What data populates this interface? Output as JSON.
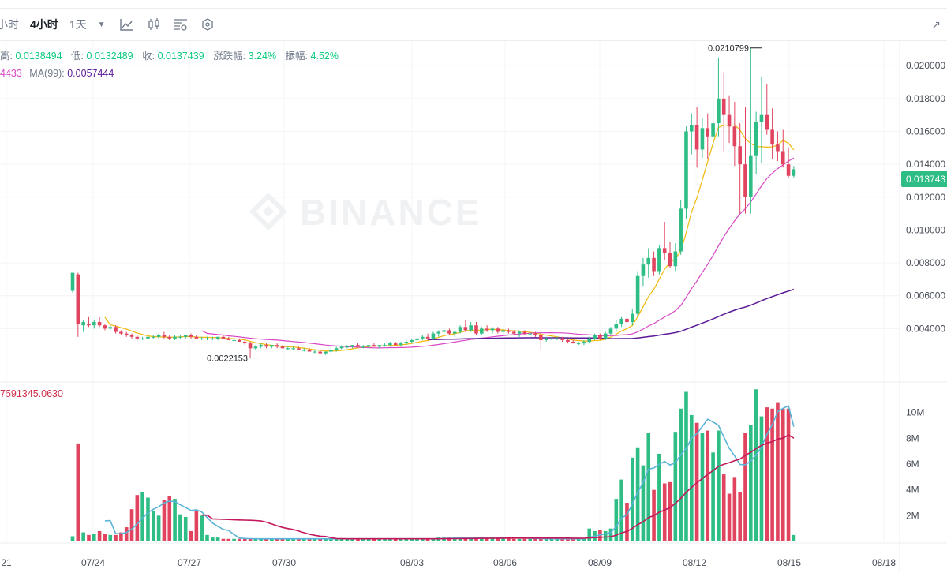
{
  "toolbar": {
    "intervals": [
      {
        "label": "小时",
        "active": false
      },
      {
        "label": "4小时",
        "active": true
      },
      {
        "label": "1天",
        "active": false
      }
    ],
    "icons": [
      "chevron-down-icon",
      "line-chart-icon",
      "candlestick-icon",
      "indicator-settings-icon",
      "hexagon-settings-icon"
    ],
    "expand_icon": "expand-arrow-icon"
  },
  "ohlc": {
    "high_label": "高:",
    "high_value": "0.0138494",
    "low_label": "低:",
    "low_value": "0.0132489",
    "close_label": "收:",
    "close_value": "0.0137439",
    "change_label": "涨跌幅:",
    "change_value": "3.24%",
    "amplitude_label": "振幅:",
    "amplitude_value": "4.52%"
  },
  "ma": {
    "ma25_value": "4433",
    "ma99_label": "MA(99):",
    "ma99_value": "0.0057444"
  },
  "volume": {
    "value": "7591345.0630"
  },
  "watermark": "BINANCE",
  "current_price": "0.013743",
  "colors": {
    "up": "#2ebd85",
    "down": "#e0445f",
    "ma7": "#f0b90b",
    "ma25": "#d946c6",
    "ma99": "#5b1a96",
    "vol_ma_a": "#5ab3d8",
    "vol_ma_b": "#c2185b"
  },
  "chart_data": {
    "type": "candlestick",
    "interval": "4h",
    "price_axis": {
      "ticks": [
        "0.004000",
        "0.006000",
        "0.008000",
        "0.010000",
        "0.012000",
        "0.014000",
        "0.016000",
        "0.018000",
        "0.020000"
      ],
      "range": [
        0.0008,
        0.0215
      ]
    },
    "volume_axis": {
      "ticks": [
        "2M",
        "4M",
        "6M",
        "8M",
        "10M"
      ],
      "range": [
        0,
        12000000
      ]
    },
    "x_axis": {
      "ticks": [
        "21",
        "07/24",
        "07/27",
        "07/30",
        "08/03",
        "08/06",
        "08/09",
        "08/12",
        "08/15",
        "08/18"
      ]
    },
    "annotations": [
      {
        "label": "0.0210799",
        "value": 0.0210799
      },
      {
        "label": "0.0022153",
        "value": 0.0022153
      }
    ],
    "candles": [
      [
        0.0063,
        0.0074,
        0.0062,
        0.0074,
        0.4
      ],
      [
        0.0073,
        0.0074,
        0.0035,
        0.0043,
        7.6
      ],
      [
        0.0042,
        0.0045,
        0.0038,
        0.0044,
        0.7
      ],
      [
        0.0043,
        0.0047,
        0.0041,
        0.0042,
        0.5
      ],
      [
        0.0042,
        0.0045,
        0.004,
        0.0044,
        0.6
      ],
      [
        0.0044,
        0.0047,
        0.0041,
        0.0042,
        0.8
      ],
      [
        0.0042,
        0.0043,
        0.0039,
        0.004,
        0.6
      ],
      [
        0.004,
        0.0042,
        0.0039,
        0.0041,
        0.5
      ],
      [
        0.0041,
        0.0042,
        0.0037,
        0.0038,
        0.5
      ],
      [
        0.0038,
        0.0039,
        0.0036,
        0.0037,
        0.7
      ],
      [
        0.0037,
        0.0038,
        0.0035,
        0.0036,
        1.1
      ],
      [
        0.0036,
        0.0037,
        0.0034,
        0.0035,
        2.5
      ],
      [
        0.0035,
        0.0036,
        0.0033,
        0.0034,
        3.6
      ],
      [
        0.0034,
        0.0035,
        0.0033,
        0.0034,
        3.8
      ],
      [
        0.0034,
        0.0036,
        0.0033,
        0.0035,
        3.4
      ],
      [
        0.0035,
        0.0036,
        0.0034,
        0.0035,
        2.4
      ],
      [
        0.0035,
        0.0037,
        0.0034,
        0.0036,
        2.0
      ],
      [
        0.0036,
        0.0038,
        0.0034,
        0.0035,
        3.2
      ],
      [
        0.0035,
        0.0036,
        0.0033,
        0.0034,
        3.5
      ],
      [
        0.0034,
        0.0036,
        0.0033,
        0.0035,
        3.3
      ],
      [
        0.0035,
        0.0036,
        0.0034,
        0.0035,
        2.1
      ],
      [
        0.0035,
        0.0036,
        0.0034,
        0.0036,
        1.9
      ],
      [
        0.0036,
        0.0037,
        0.0034,
        0.0035,
        0.8
      ],
      [
        0.0035,
        0.0036,
        0.0034,
        0.0034,
        2.4
      ],
      [
        0.0034,
        0.0035,
        0.0033,
        0.0034,
        2.0
      ],
      [
        0.0034,
        0.0035,
        0.0033,
        0.0034,
        0.5
      ],
      [
        0.0034,
        0.0035,
        0.0033,
        0.0034,
        0.3
      ],
      [
        0.0034,
        0.0035,
        0.0033,
        0.0035,
        0.3
      ],
      [
        0.0035,
        0.0036,
        0.0034,
        0.0034,
        0.2
      ],
      [
        0.0034,
        0.0035,
        0.0033,
        0.0033,
        0.2
      ],
      [
        0.0033,
        0.0034,
        0.0032,
        0.0033,
        0.2
      ],
      [
        0.0033,
        0.0034,
        0.0032,
        0.0032,
        0.2
      ],
      [
        0.0032,
        0.0033,
        0.003,
        0.0031,
        0.2
      ],
      [
        0.0031,
        0.0032,
        0.0022,
        0.0028,
        0.2
      ],
      [
        0.0028,
        0.003,
        0.0027,
        0.0029,
        0.2
      ],
      [
        0.0029,
        0.0031,
        0.0028,
        0.003,
        0.2
      ],
      [
        0.003,
        0.0031,
        0.0028,
        0.0029,
        0.2
      ],
      [
        0.0029,
        0.003,
        0.0028,
        0.003,
        0.2
      ],
      [
        0.003,
        0.0031,
        0.0028,
        0.0029,
        0.2
      ],
      [
        0.0029,
        0.003,
        0.0028,
        0.0028,
        0.2
      ],
      [
        0.0028,
        0.0029,
        0.0027,
        0.0028,
        0.2
      ],
      [
        0.0028,
        0.0029,
        0.0027,
        0.0028,
        0.2
      ],
      [
        0.0028,
        0.0029,
        0.0027,
        0.0027,
        0.2
      ],
      [
        0.0027,
        0.0028,
        0.0026,
        0.0027,
        0.2
      ],
      [
        0.0027,
        0.0028,
        0.0026,
        0.0026,
        0.2
      ],
      [
        0.0026,
        0.0027,
        0.0025,
        0.0026,
        0.2
      ],
      [
        0.0026,
        0.0027,
        0.0025,
        0.0025,
        0.2
      ],
      [
        0.0025,
        0.0026,
        0.0024,
        0.0026,
        0.2
      ],
      [
        0.0026,
        0.0028,
        0.0025,
        0.0027,
        0.2
      ],
      [
        0.0027,
        0.0029,
        0.0026,
        0.0028,
        0.2
      ],
      [
        0.0028,
        0.003,
        0.0027,
        0.0029,
        0.2
      ],
      [
        0.0029,
        0.003,
        0.0028,
        0.0029,
        0.2
      ],
      [
        0.0029,
        0.003,
        0.0028,
        0.003,
        0.2
      ],
      [
        0.003,
        0.0031,
        0.0029,
        0.0029,
        0.2
      ],
      [
        0.0029,
        0.003,
        0.0028,
        0.0029,
        0.2
      ],
      [
        0.0029,
        0.003,
        0.0028,
        0.003,
        0.2
      ],
      [
        0.003,
        0.0031,
        0.0029,
        0.0029,
        0.2
      ],
      [
        0.0029,
        0.003,
        0.0028,
        0.003,
        0.2
      ],
      [
        0.003,
        0.0031,
        0.0029,
        0.003,
        0.2
      ],
      [
        0.003,
        0.0032,
        0.0029,
        0.0031,
        0.2
      ],
      [
        0.0031,
        0.0032,
        0.003,
        0.003,
        0.2
      ],
      [
        0.003,
        0.0032,
        0.0029,
        0.0031,
        0.2
      ],
      [
        0.0031,
        0.0033,
        0.003,
        0.0032,
        0.2
      ],
      [
        0.0032,
        0.0034,
        0.0031,
        0.0033,
        0.2
      ],
      [
        0.0033,
        0.0035,
        0.0032,
        0.0034,
        0.2
      ],
      [
        0.0034,
        0.0036,
        0.0033,
        0.0035,
        0.2
      ],
      [
        0.0035,
        0.0037,
        0.0033,
        0.0034,
        0.2
      ],
      [
        0.0034,
        0.0038,
        0.0033,
        0.0037,
        0.2
      ],
      [
        0.0037,
        0.0039,
        0.0035,
        0.0038,
        0.3
      ],
      [
        0.0038,
        0.0041,
        0.0036,
        0.0039,
        0.3
      ],
      [
        0.0039,
        0.004,
        0.0036,
        0.0037,
        0.3
      ],
      [
        0.0037,
        0.0039,
        0.0035,
        0.0038,
        0.3
      ],
      [
        0.0038,
        0.0042,
        0.0037,
        0.0041,
        0.3
      ],
      [
        0.0041,
        0.0045,
        0.0038,
        0.0039,
        0.3
      ],
      [
        0.0039,
        0.0044,
        0.0038,
        0.0042,
        0.3
      ],
      [
        0.0042,
        0.0044,
        0.0036,
        0.0037,
        0.3
      ],
      [
        0.0037,
        0.0041,
        0.0036,
        0.004,
        0.3
      ],
      [
        0.004,
        0.0042,
        0.0038,
        0.0039,
        0.3
      ],
      [
        0.0039,
        0.0041,
        0.0037,
        0.004,
        0.3
      ],
      [
        0.004,
        0.0041,
        0.0037,
        0.0038,
        0.3
      ],
      [
        0.0038,
        0.004,
        0.0036,
        0.0039,
        0.3
      ],
      [
        0.0039,
        0.004,
        0.0037,
        0.0038,
        0.3
      ],
      [
        0.0038,
        0.0039,
        0.0036,
        0.0037,
        0.2
      ],
      [
        0.0037,
        0.0039,
        0.0035,
        0.0038,
        0.2
      ],
      [
        0.0038,
        0.0039,
        0.0036,
        0.0037,
        0.2
      ],
      [
        0.0037,
        0.0038,
        0.0035,
        0.0037,
        0.2
      ],
      [
        0.0037,
        0.0038,
        0.0035,
        0.0036,
        0.2
      ],
      [
        0.0036,
        0.0037,
        0.0027,
        0.0033,
        0.2
      ],
      [
        0.0033,
        0.0035,
        0.0032,
        0.0034,
        0.2
      ],
      [
        0.0034,
        0.0035,
        0.0033,
        0.0034,
        0.2
      ],
      [
        0.0034,
        0.0035,
        0.0033,
        0.0034,
        0.2
      ],
      [
        0.0034,
        0.0035,
        0.0032,
        0.0033,
        0.2
      ],
      [
        0.0033,
        0.0034,
        0.0031,
        0.0032,
        0.2
      ],
      [
        0.0032,
        0.0033,
        0.0031,
        0.0031,
        0.2
      ],
      [
        0.0031,
        0.0032,
        0.003,
        0.0031,
        0.2
      ],
      [
        0.0031,
        0.0033,
        0.003,
        0.0032,
        0.2
      ],
      [
        0.0032,
        0.0035,
        0.0031,
        0.0034,
        1.0
      ],
      [
        0.0034,
        0.0037,
        0.0033,
        0.0036,
        0.8
      ],
      [
        0.0036,
        0.0037,
        0.0033,
        0.0034,
        0.9
      ],
      [
        0.0034,
        0.0038,
        0.0033,
        0.0037,
        0.8
      ],
      [
        0.0037,
        0.0041,
        0.0036,
        0.004,
        1.0
      ],
      [
        0.004,
        0.0045,
        0.0038,
        0.0043,
        3.3
      ],
      [
        0.0043,
        0.0047,
        0.0041,
        0.0046,
        4.8
      ],
      [
        0.0046,
        0.005,
        0.0043,
        0.0044,
        3.0
      ],
      [
        0.0044,
        0.0052,
        0.0042,
        0.0049,
        6.5
      ],
      [
        0.0049,
        0.0075,
        0.0047,
        0.0072,
        7.3
      ],
      [
        0.0072,
        0.0083,
        0.0066,
        0.0079,
        5.9
      ],
      [
        0.0079,
        0.0089,
        0.0071,
        0.0083,
        8.4
      ],
      [
        0.0083,
        0.0087,
        0.0072,
        0.0075,
        4.0
      ],
      [
        0.0075,
        0.0091,
        0.0073,
        0.0089,
        6.8
      ],
      [
        0.0089,
        0.0105,
        0.0082,
        0.0086,
        4.5
      ],
      [
        0.0086,
        0.0093,
        0.0077,
        0.0078,
        4.6
      ],
      [
        0.0078,
        0.0092,
        0.0075,
        0.0087,
        8.5
      ],
      [
        0.0087,
        0.0118,
        0.0085,
        0.0113,
        10.3
      ],
      [
        0.0113,
        0.0163,
        0.0107,
        0.016,
        11.6
      ],
      [
        0.016,
        0.0171,
        0.0146,
        0.0164,
        9.8
      ],
      [
        0.0164,
        0.0175,
        0.0138,
        0.0149,
        9.2
      ],
      [
        0.0149,
        0.0168,
        0.0144,
        0.0162,
        8.4
      ],
      [
        0.0162,
        0.0171,
        0.0143,
        0.0157,
        8.6
      ],
      [
        0.0157,
        0.018,
        0.0149,
        0.0165,
        6.9
      ],
      [
        0.0165,
        0.0205,
        0.0157,
        0.018,
        8.6
      ],
      [
        0.018,
        0.0196,
        0.0148,
        0.017,
        5.2
      ],
      [
        0.017,
        0.0182,
        0.0153,
        0.0163,
        3.7
      ],
      [
        0.0163,
        0.0178,
        0.0139,
        0.0151,
        5.0
      ],
      [
        0.0151,
        0.0165,
        0.011,
        0.014,
        3.8
      ],
      [
        0.014,
        0.0175,
        0.011,
        0.012,
        8.4
      ],
      [
        0.012,
        0.0211,
        0.011,
        0.0145,
        9.0
      ],
      [
        0.0145,
        0.0172,
        0.0134,
        0.0166,
        11.8
      ],
      [
        0.0166,
        0.0193,
        0.0141,
        0.017,
        9.7
      ],
      [
        0.017,
        0.0189,
        0.0158,
        0.0161,
        10.4
      ],
      [
        0.0161,
        0.0174,
        0.0143,
        0.0152,
        10.3
      ],
      [
        0.0152,
        0.016,
        0.0142,
        0.0148,
        10.8
      ],
      [
        0.0148,
        0.0161,
        0.0138,
        0.014,
        10.3
      ],
      [
        0.014,
        0.015,
        0.0132,
        0.0133,
        10.3
      ],
      [
        0.0133,
        0.0139,
        0.0132,
        0.0137,
        0.5
      ]
    ],
    "ma_legend": [
      {
        "name": "MA(99)",
        "value": "0.0057444"
      }
    ]
  }
}
